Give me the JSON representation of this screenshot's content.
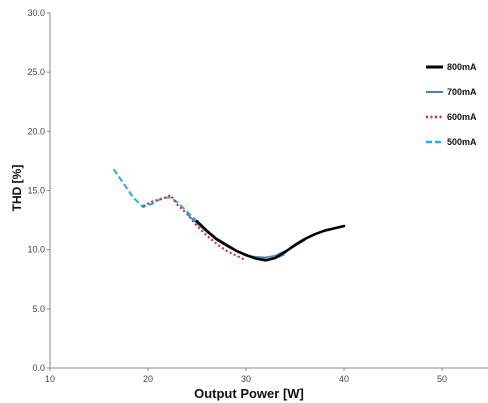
{
  "chart_data": {
    "type": "line",
    "title": "",
    "xlabel": "Output Power [W]",
    "ylabel": "THD [%]",
    "xlim": [
      10,
      50
    ],
    "ylim": [
      0,
      30
    ],
    "x_ticks": [
      "10",
      "20",
      "30",
      "40",
      "50"
    ],
    "y_ticks": [
      "0.0",
      "5.0",
      "10.0",
      "15.0",
      "20.0",
      "25.0",
      "30.0"
    ],
    "grid": false,
    "legend_position": "right",
    "series": [
      {
        "name": "800mA",
        "color": "#000000",
        "style": "solid",
        "points": [
          [
            25,
            12.4
          ],
          [
            26,
            11.6
          ],
          [
            27,
            10.9
          ],
          [
            28,
            10.4
          ],
          [
            29,
            9.9
          ],
          [
            30,
            9.55
          ],
          [
            31,
            9.25
          ],
          [
            32,
            9.1
          ],
          [
            33,
            9.3
          ],
          [
            34,
            9.8
          ],
          [
            35,
            10.4
          ],
          [
            36,
            10.9
          ],
          [
            37,
            11.3
          ],
          [
            38,
            11.6
          ],
          [
            39,
            11.8
          ],
          [
            40,
            12.0
          ]
        ]
      },
      {
        "name": "700mA",
        "color": "#4a7fb5",
        "style": "solid",
        "points": [
          [
            24,
            13.0
          ],
          [
            25,
            12.2
          ],
          [
            26,
            11.5
          ],
          [
            27,
            10.8
          ],
          [
            28,
            10.3
          ],
          [
            29,
            9.9
          ],
          [
            30,
            9.5
          ],
          [
            31,
            9.4
          ],
          [
            32,
            9.35
          ],
          [
            33,
            9.5
          ],
          [
            34,
            9.9
          ],
          [
            35,
            10.3
          ],
          [
            36,
            10.8
          ]
        ]
      },
      {
        "name": "600mA",
        "color": "#e02020",
        "style": "dotted",
        "points": [
          [
            19.5,
            13.7
          ],
          [
            20.5,
            14.1
          ],
          [
            21.5,
            14.3
          ],
          [
            22.3,
            14.6
          ],
          [
            23,
            13.8
          ],
          [
            24,
            13.0
          ],
          [
            25,
            12.0
          ],
          [
            26,
            11.2
          ],
          [
            27,
            10.5
          ],
          [
            28,
            9.9
          ],
          [
            29,
            9.5
          ],
          [
            30,
            9.1
          ]
        ]
      },
      {
        "name": "500mA",
        "color": "#22b0e8",
        "style": "dashed",
        "points": [
          [
            16.5,
            16.8
          ],
          [
            17.5,
            15.6
          ],
          [
            18.5,
            14.4
          ],
          [
            19.5,
            13.6
          ],
          [
            20.5,
            13.9
          ],
          [
            21.5,
            14.4
          ],
          [
            22.3,
            14.4
          ],
          [
            23,
            14.0
          ],
          [
            24,
            13.2
          ],
          [
            25,
            12.4
          ],
          [
            26,
            11.6
          ],
          [
            27,
            10.9
          ],
          [
            28,
            10.3
          ],
          [
            29,
            9.9
          ],
          [
            30,
            9.5
          ],
          [
            31,
            9.3
          ],
          [
            32,
            9.2
          ],
          [
            33,
            9.3
          ],
          [
            34,
            9.6
          ]
        ]
      }
    ]
  }
}
